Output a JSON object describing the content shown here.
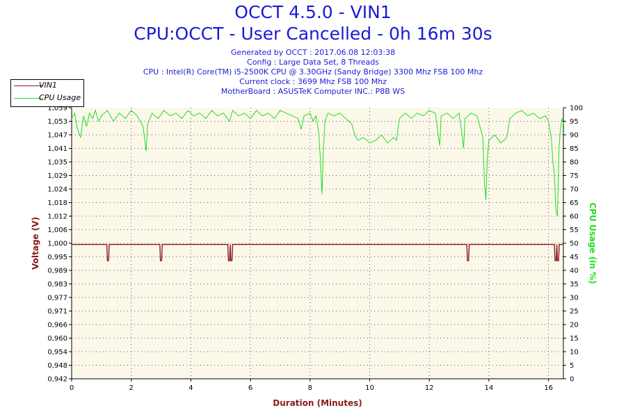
{
  "header": {
    "title": "OCCT 4.5.0 - VIN1",
    "subtitle": "CPU:OCCT - User Cancelled - 0h 16m 30s",
    "info_lines": [
      "Generated by OCCT : 2017.06.08 12:03:38",
      "Config : Large Data Set, 8 Threads",
      "CPU : Intel(R) Core(TM) i5-2500K CPU @ 3.30GHz (Sandy Bridge) 3300 Mhz FSB 100 Mhz",
      "Current clock : 3699 Mhz FSB 100 Mhz",
      "MotherBoard : ASUSTeK Computer INC.: P8B WS"
    ]
  },
  "colors": {
    "vin1": "#8b1a1a",
    "cpu": "#22dd22",
    "plot_bg": "#fbf8ea",
    "grid": "#555555",
    "title": "#1a1ad6",
    "ylabel_left": "#8b1a1a",
    "ylabel_right": "#22dd22"
  },
  "chart_data": {
    "type": "line",
    "xlabel": "Duration (Minutes)",
    "ylabel": "Voltage (V)",
    "ylabel_right": "CPU Usage (in %)",
    "xlim": [
      0,
      16.5
    ],
    "ylim": [
      0.942,
      1.059
    ],
    "ylim_right": [
      0,
      100
    ],
    "x_ticks": [
      "0",
      "2",
      "4",
      "6",
      "8",
      "10",
      "12",
      "14",
      "16"
    ],
    "x_tick_values": [
      0,
      2,
      4,
      6,
      8,
      10,
      12,
      14,
      16
    ],
    "y_ticks": [
      "1,059",
      "1,053",
      "1,047",
      "1,041",
      "1,035",
      "1,029",
      "1,024",
      "1,018",
      "1,012",
      "1,006",
      "1,000",
      "0,995",
      "0,989",
      "0,983",
      "0,977",
      "0,971",
      "0,966",
      "0,960",
      "0,954",
      "0,948",
      "0,942"
    ],
    "y_ticks_right": [
      "100",
      "95",
      "90",
      "85",
      "80",
      "75",
      "70",
      "65",
      "60",
      "55",
      "50",
      "45",
      "40",
      "35",
      "30",
      "25",
      "20",
      "15",
      "10",
      "5",
      "0"
    ],
    "grid": true,
    "legend_position": "top-left",
    "series": [
      {
        "name": "VIN1",
        "axis": "left",
        "baseline": 1.0,
        "points": [
          [
            0,
            1.0
          ],
          [
            1.18,
            1.0
          ],
          [
            1.2,
            0.993
          ],
          [
            1.24,
            0.993
          ],
          [
            1.26,
            1.0
          ],
          [
            2.96,
            1.0
          ],
          [
            2.98,
            0.993
          ],
          [
            3.02,
            0.993
          ],
          [
            3.04,
            1.0
          ],
          [
            5.24,
            1.0
          ],
          [
            5.26,
            0.993
          ],
          [
            5.3,
            0.993
          ],
          [
            5.32,
            1.0
          ],
          [
            5.34,
            0.993
          ],
          [
            5.38,
            0.993
          ],
          [
            5.4,
            1.0
          ],
          [
            13.26,
            1.0
          ],
          [
            13.28,
            0.993
          ],
          [
            13.32,
            0.993
          ],
          [
            13.34,
            1.0
          ],
          [
            16.2,
            1.0
          ],
          [
            16.22,
            0.993
          ],
          [
            16.26,
            0.993
          ],
          [
            16.28,
            1.0
          ],
          [
            16.3,
            0.993
          ],
          [
            16.34,
            0.993
          ],
          [
            16.36,
            1.0
          ],
          [
            16.5,
            1.0
          ]
        ]
      },
      {
        "name": "CPU Usage",
        "axis": "right",
        "points": [
          [
            0,
            96
          ],
          [
            0.1,
            98
          ],
          [
            0.2,
            92
          ],
          [
            0.3,
            89
          ],
          [
            0.4,
            97
          ],
          [
            0.5,
            93
          ],
          [
            0.6,
            98
          ],
          [
            0.7,
            96
          ],
          [
            0.8,
            99
          ],
          [
            0.9,
            95
          ],
          [
            1.0,
            97
          ],
          [
            1.2,
            99
          ],
          [
            1.4,
            95
          ],
          [
            1.6,
            98
          ],
          [
            1.8,
            96
          ],
          [
            2.0,
            99
          ],
          [
            2.2,
            97
          ],
          [
            2.4,
            93
          ],
          [
            2.45,
            88
          ],
          [
            2.5,
            84
          ],
          [
            2.55,
            94
          ],
          [
            2.7,
            98
          ],
          [
            2.9,
            96
          ],
          [
            3.1,
            99
          ],
          [
            3.3,
            97
          ],
          [
            3.5,
            98
          ],
          [
            3.7,
            96
          ],
          [
            3.9,
            99
          ],
          [
            4.1,
            97
          ],
          [
            4.3,
            98
          ],
          [
            4.5,
            96
          ],
          [
            4.7,
            99
          ],
          [
            4.9,
            97
          ],
          [
            5.1,
            98
          ],
          [
            5.3,
            95
          ],
          [
            5.4,
            99
          ],
          [
            5.6,
            97
          ],
          [
            5.8,
            98
          ],
          [
            6.0,
            96
          ],
          [
            6.2,
            99
          ],
          [
            6.4,
            97
          ],
          [
            6.6,
            98
          ],
          [
            6.8,
            96
          ],
          [
            7.0,
            99
          ],
          [
            7.2,
            98
          ],
          [
            7.4,
            97
          ],
          [
            7.6,
            96
          ],
          [
            7.7,
            92
          ],
          [
            7.8,
            97
          ],
          [
            8.0,
            98
          ],
          [
            8.1,
            95
          ],
          [
            8.2,
            97
          ],
          [
            8.3,
            90
          ],
          [
            8.35,
            80
          ],
          [
            8.4,
            68
          ],
          [
            8.45,
            85
          ],
          [
            8.5,
            95
          ],
          [
            8.6,
            98
          ],
          [
            8.8,
            97
          ],
          [
            9.0,
            98
          ],
          [
            9.2,
            96
          ],
          [
            9.4,
            94
          ],
          [
            9.5,
            90
          ],
          [
            9.6,
            88
          ],
          [
            9.8,
            89
          ],
          [
            10.0,
            87
          ],
          [
            10.2,
            88
          ],
          [
            10.4,
            90
          ],
          [
            10.6,
            87
          ],
          [
            10.8,
            89
          ],
          [
            10.9,
            88
          ],
          [
            11.0,
            96
          ],
          [
            11.2,
            98
          ],
          [
            11.4,
            96
          ],
          [
            11.6,
            98
          ],
          [
            11.8,
            97
          ],
          [
            12.0,
            99
          ],
          [
            12.2,
            98
          ],
          [
            12.3,
            90
          ],
          [
            12.35,
            86
          ],
          [
            12.4,
            97
          ],
          [
            12.6,
            98
          ],
          [
            12.8,
            96
          ],
          [
            13.0,
            98
          ],
          [
            13.1,
            90
          ],
          [
            13.15,
            85
          ],
          [
            13.2,
            96
          ],
          [
            13.4,
            98
          ],
          [
            13.6,
            97
          ],
          [
            13.7,
            93
          ],
          [
            13.8,
            89
          ],
          [
            13.85,
            72
          ],
          [
            13.9,
            66
          ],
          [
            13.95,
            82
          ],
          [
            14.0,
            88
          ],
          [
            14.2,
            90
          ],
          [
            14.4,
            87
          ],
          [
            14.6,
            89
          ],
          [
            14.7,
            96
          ],
          [
            14.9,
            98
          ],
          [
            15.1,
            99
          ],
          [
            15.3,
            97
          ],
          [
            15.5,
            98
          ],
          [
            15.7,
            96
          ],
          [
            15.9,
            97
          ],
          [
            16.0,
            95
          ],
          [
            16.1,
            88
          ],
          [
            16.15,
            80
          ],
          [
            16.2,
            75
          ],
          [
            16.25,
            62
          ],
          [
            16.3,
            60
          ],
          [
            16.35,
            85
          ],
          [
            16.4,
            92
          ],
          [
            16.45,
            96
          ],
          [
            16.5,
            94
          ]
        ]
      }
    ]
  },
  "legend": {
    "items": [
      {
        "label": "VIN1"
      },
      {
        "label": "CPU Usage"
      }
    ]
  }
}
